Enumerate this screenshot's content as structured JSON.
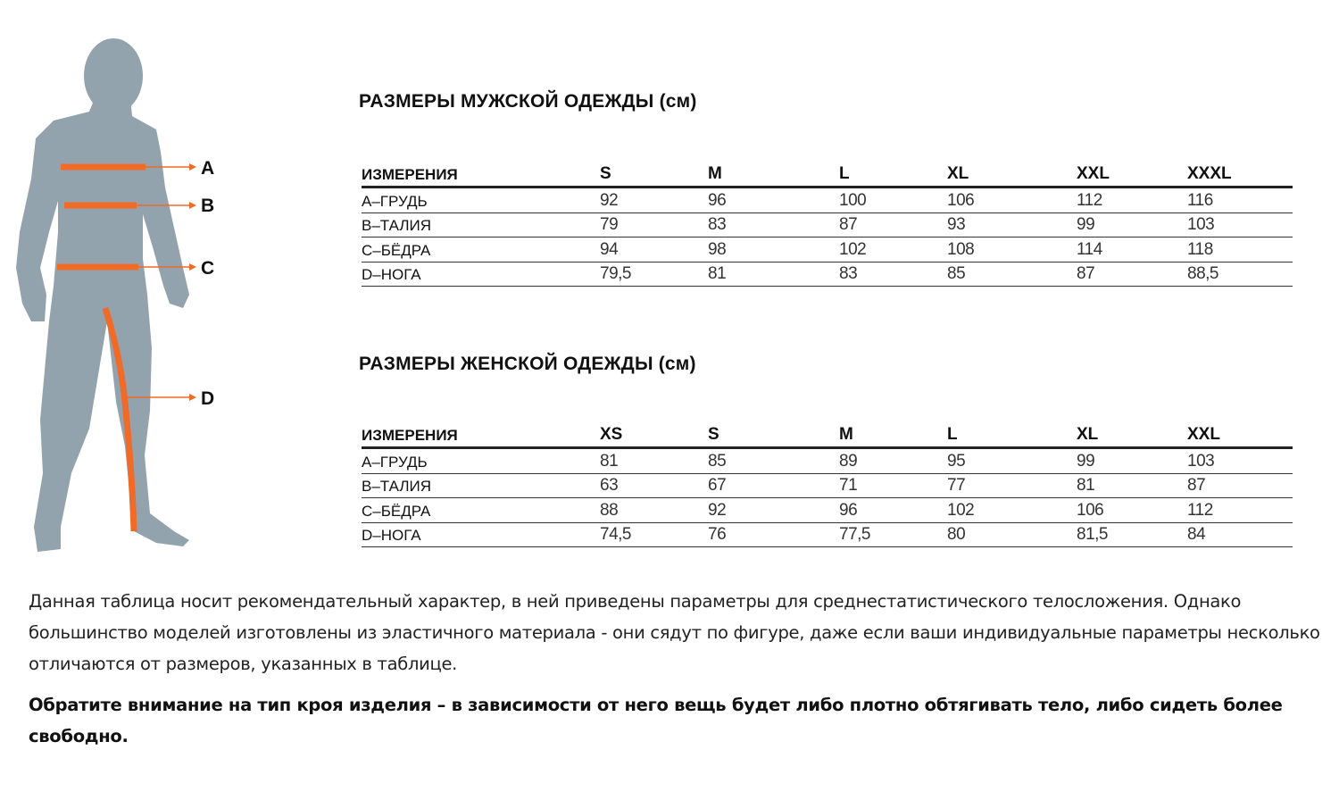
{
  "figure": {
    "labels": [
      "A",
      "B",
      "C",
      "D"
    ],
    "body_color": "#93a3ad",
    "accent_color": "#f06a28"
  },
  "men": {
    "title": "РАЗМЕРЫ МУЖСКОЙ ОДЕЖДЫ (см)",
    "headers": [
      "ИЗМЕРЕНИЯ",
      "S",
      "M",
      "L",
      "XL",
      "XXL",
      "XXXL"
    ],
    "rows": [
      [
        "A–ГРУДЬ",
        "92",
        "96",
        "100",
        "106",
        "112",
        "116"
      ],
      [
        "B–ТАЛИЯ",
        "79",
        "83",
        "87",
        "93",
        "99",
        "103"
      ],
      [
        "C–БЁДРА",
        "94",
        "98",
        "102",
        "108",
        "114",
        "118"
      ],
      [
        "D–НОГА",
        "79,5",
        "81",
        "83",
        "85",
        "87",
        "88,5"
      ]
    ]
  },
  "women": {
    "title": "РАЗМЕРЫ ЖЕНСКОЙ ОДЕЖДЫ (см)",
    "headers": [
      "ИЗМЕРЕНИЯ",
      "XS",
      "S",
      "M",
      "L",
      "XL",
      "XXL"
    ],
    "rows": [
      [
        "A–ГРУДЬ",
        "81",
        "85",
        "89",
        "95",
        "99",
        "103"
      ],
      [
        "B–ТАЛИЯ",
        "63",
        "67",
        "71",
        "77",
        "81",
        "87"
      ],
      [
        "C–БЁДРА",
        "88",
        "92",
        "96",
        "102",
        "106",
        "112"
      ],
      [
        "D–НОГА",
        "74,5",
        "76",
        "77,5",
        "80",
        "81,5",
        "84"
      ]
    ]
  },
  "note": "Данная таблица носит рекомендательный характер, в ней приведены параметры для среднестатистического телосложения. Однако большинство моделей изготовлены из эластичного материала - они сядут по фигуре, даже если ваши индивидуальные параметры несколько отличаются от размеров, указанных в таблице.",
  "note_bold": "Обратите внимание на тип кроя изделия – в зависимости от него вещь будет либо плотно обтягивать тело, либо сидеть более свободно."
}
